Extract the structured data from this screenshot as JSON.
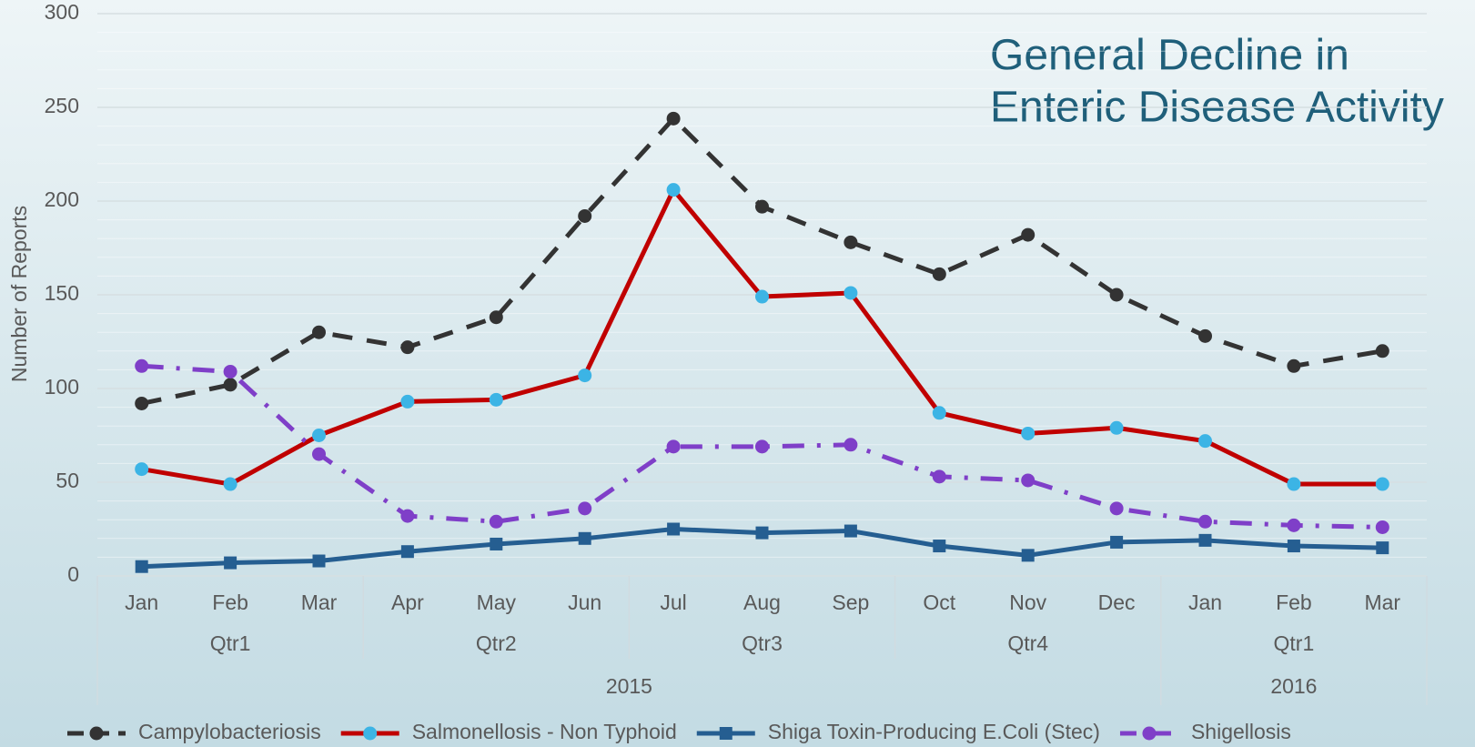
{
  "chart_data": {
    "type": "line",
    "title": [
      "General Decline in",
      "Enteric Disease Activity"
    ],
    "y_label": "Number of Reports",
    "categories": [
      "Jan",
      "Feb",
      "Mar",
      "Apr",
      "May",
      "Jun",
      "Jul",
      "Aug",
      "Sep",
      "Oct",
      "Nov",
      "Dec",
      "Jan",
      "Feb",
      "Mar"
    ],
    "quarters": [
      "Qtr1",
      "Qtr1",
      "Qtr1",
      "Qtr2",
      "Qtr2",
      "Qtr2",
      "Qtr3",
      "Qtr3",
      "Qtr3",
      "Qtr4",
      "Qtr4",
      "Qtr4",
      "Qtr1",
      "Qtr1",
      "Qtr1"
    ],
    "years": [
      "2015",
      "2015",
      "2015",
      "2015",
      "2015",
      "2015",
      "2015",
      "2015",
      "2015",
      "2015",
      "2015",
      "2015",
      "2016",
      "2016",
      "2016"
    ],
    "ylim": [
      0,
      300
    ],
    "yticks": [
      0,
      50,
      100,
      150,
      200,
      250,
      300
    ],
    "grid": true,
    "minor_grid": true,
    "legend": "bottom",
    "series": [
      {
        "name": "Campylobacteriosis",
        "color": "#333333",
        "marker_color": "#333333",
        "marker": "circle",
        "dash": "dash",
        "values": [
          92,
          102,
          130,
          122,
          138,
          192,
          244,
          197,
          178,
          161,
          182,
          150,
          128,
          112,
          120
        ]
      },
      {
        "name": "Salmonellosis - Non Typhoid",
        "color": "#c00000",
        "marker_color": "#3cb4e5",
        "marker": "circle",
        "dash": "solid",
        "values": [
          57,
          49,
          75,
          93,
          94,
          107,
          206,
          149,
          151,
          87,
          76,
          79,
          72,
          49,
          49
        ]
      },
      {
        "name": "Shiga Toxin-Producing E.Coli (Stec)",
        "color": "#255e91",
        "marker_color": "#255e91",
        "marker": "square",
        "dash": "solid",
        "values": [
          5,
          7,
          8,
          13,
          17,
          20,
          25,
          23,
          24,
          16,
          11,
          18,
          19,
          16,
          15
        ]
      },
      {
        "name": "Shigellosis",
        "color": "#7f3fc8",
        "marker_color": "#7f3fc8",
        "marker": "circle",
        "dash": "dashdot",
        "values": [
          112,
          109,
          65,
          32,
          29,
          36,
          69,
          69,
          70,
          53,
          51,
          36,
          29,
          27,
          26
        ]
      }
    ]
  }
}
